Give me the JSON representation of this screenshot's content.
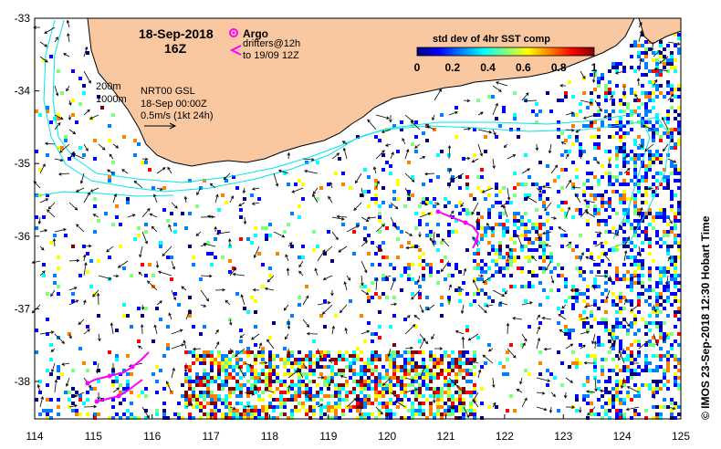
{
  "map": {
    "date_title": "18-Sep-2018",
    "hour_title": "16Z",
    "legend_argo": "Argo",
    "legend_drifters_line1": "drifters@12h",
    "legend_drifters_line2": "to 19/09 12Z",
    "contour_200": "200m",
    "contour_1000": "1000m",
    "source_line1": "NRT00 GSL",
    "source_line2": "18-Sep 00:00Z",
    "source_line3": "0.5m/s (1kt 24h)",
    "credit": "© IMOS 23-Sep-2018 12:30 Hobart Time",
    "colorbar": {
      "title": "std dev of 4hr SST comp",
      "ticks": [
        "0",
        "0.2",
        "0.4",
        "0.6",
        "0.8",
        "1"
      ],
      "colors": [
        "#00007f",
        "#0000ff",
        "#007fff",
        "#00ffff",
        "#7fff7f",
        "#ffff00",
        "#ff7f00",
        "#ff0000",
        "#7f0000"
      ]
    },
    "x_ticks": [
      "114",
      "115",
      "116",
      "117",
      "118",
      "119",
      "120",
      "121",
      "122",
      "123",
      "124",
      "125"
    ],
    "y_ticks": [
      "-33",
      "-34",
      "-35",
      "-36",
      "-37",
      "-38"
    ],
    "colors": {
      "land": "#fac8a0",
      "isobath": "#00e5ee",
      "argo": "#ff00ff",
      "drifter": "#ff00ff"
    }
  }
}
